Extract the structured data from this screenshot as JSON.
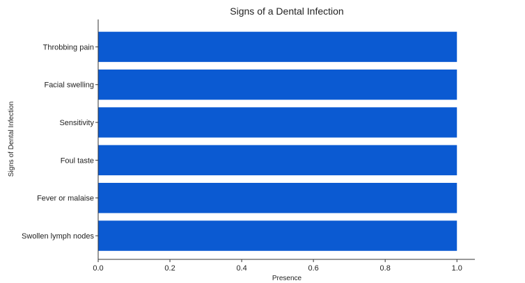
{
  "chart_data": {
    "type": "bar",
    "orientation": "horizontal",
    "title": "Signs of a Dental Infection",
    "xlabel": "Presence",
    "ylabel": "Signs of Dental Infection",
    "categories": [
      "Throbbing pain",
      "Facial swelling",
      "Sensitivity",
      "Foul taste",
      "Fever or malaise",
      "Swollen lymph nodes"
    ],
    "values": [
      1.0,
      1.0,
      1.0,
      1.0,
      1.0,
      1.0
    ],
    "xlim": [
      0.0,
      1.05
    ],
    "xticks": [
      "0.0",
      "0.2",
      "0.4",
      "0.6",
      "0.8",
      "1.0"
    ],
    "grid": false,
    "legend": "none",
    "colors": {
      "bar": "#0b5ad2",
      "axis": "#333333",
      "text": "#222222"
    }
  }
}
